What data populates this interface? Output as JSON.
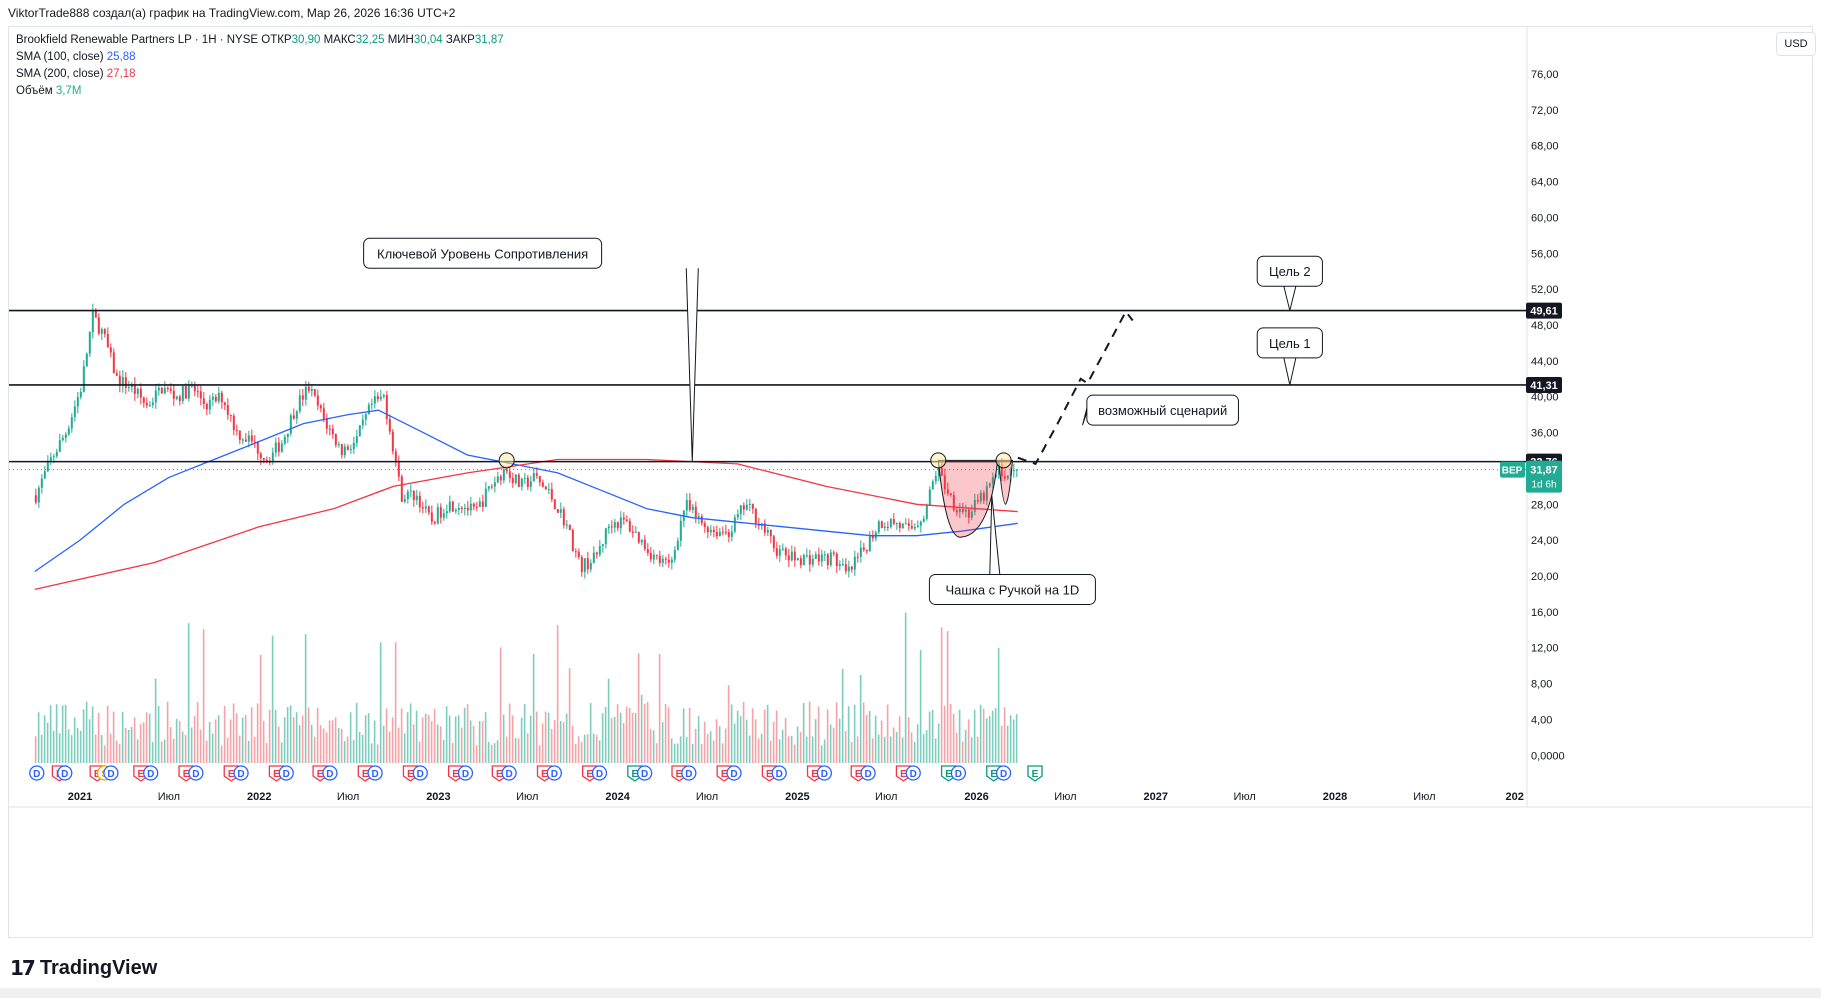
{
  "header": {
    "credit": "ViktorTrade888 создал(а) график на TradingView.com, Мар 26, 2026 16:36 UTC+2"
  },
  "legend": {
    "symbol": "Brookfield Renewable Partners LP · 1Н · NYSE",
    "open_label": "ОТКР",
    "open": "30,90",
    "high_label": "МАКС",
    "high": "32,25",
    "low_label": "МИН",
    "low": "30,04",
    "close_label": "ЗАКР",
    "close": "31,87",
    "sma100_label": "SMA (100, close)",
    "sma100": "25,88",
    "sma200_label": "SMA (200, close)",
    "sma200": "27,18",
    "volume_label": "Объём",
    "volume": "3,7M"
  },
  "currency": "USD",
  "branding": {
    "logo_text": "TradingView"
  },
  "colors": {
    "up": "#22ab94",
    "down": "#f23645",
    "sma100": "#2962ff",
    "sma200": "#f23645",
    "vol_up": "#7ccdbd",
    "vol_down": "#f4a3a8",
    "level": "#131722"
  },
  "chart_data": {
    "type": "candlestick",
    "ylim": [
      0,
      78
    ],
    "y_ticks": [
      "76,00",
      "72,00",
      "68,00",
      "64,00",
      "60,00",
      "56,00",
      "52,00",
      "48,00",
      "44,00",
      "40,00",
      "36,00",
      "32,00",
      "28,00",
      "24,00",
      "20,00",
      "16,00",
      "12,00",
      "8,00",
      "4,00",
      "0,0000"
    ],
    "x_tick_labels": [
      "2021",
      "Июл",
      "2022",
      "Июл",
      "2023",
      "Июл",
      "2024",
      "Июл",
      "2025",
      "Июл",
      "2026",
      "Июл",
      "2027",
      "Июл",
      "2028",
      "Июл",
      "202"
    ],
    "price_anchors": [
      {
        "date": "2020-10-01",
        "price": 29
      },
      {
        "date": "2020-11-01",
        "price": 33
      },
      {
        "date": "2020-12-01",
        "price": 36
      },
      {
        "date": "2021-01-01",
        "price": 41
      },
      {
        "date": "2021-01-25",
        "price": 49
      },
      {
        "date": "2021-02-15",
        "price": 47
      },
      {
        "date": "2021-03-15",
        "price": 42
      },
      {
        "date": "2021-04-15",
        "price": 41
      },
      {
        "date": "2021-05-15",
        "price": 39
      },
      {
        "date": "2021-06-15",
        "price": 41
      },
      {
        "date": "2021-07-15",
        "price": 40
      },
      {
        "date": "2021-08-15",
        "price": 41
      },
      {
        "date": "2021-09-15",
        "price": 39
      },
      {
        "date": "2021-10-15",
        "price": 40
      },
      {
        "date": "2021-11-15",
        "price": 36
      },
      {
        "date": "2021-12-15",
        "price": 35
      },
      {
        "date": "2022-01-15",
        "price": 33
      },
      {
        "date": "2022-02-15",
        "price": 35
      },
      {
        "date": "2022-03-15",
        "price": 39
      },
      {
        "date": "2022-04-10",
        "price": 41
      },
      {
        "date": "2022-05-15",
        "price": 37
      },
      {
        "date": "2022-06-15",
        "price": 34
      },
      {
        "date": "2022-07-15",
        "price": 35
      },
      {
        "date": "2022-08-15",
        "price": 39
      },
      {
        "date": "2022-09-10",
        "price": 40
      },
      {
        "date": "2022-09-30",
        "price": 34
      },
      {
        "date": "2022-10-15",
        "price": 29
      },
      {
        "date": "2022-11-15",
        "price": 29
      },
      {
        "date": "2022-12-15",
        "price": 26
      },
      {
        "date": "2023-01-15",
        "price": 28
      },
      {
        "date": "2023-02-15",
        "price": 28
      },
      {
        "date": "2023-03-15",
        "price": 27
      },
      {
        "date": "2023-04-15",
        "price": 30
      },
      {
        "date": "2023-05-15",
        "price": 32
      },
      {
        "date": "2023-06-15",
        "price": 30
      },
      {
        "date": "2023-07-15",
        "price": 31
      },
      {
        "date": "2023-08-15",
        "price": 29
      },
      {
        "date": "2023-09-15",
        "price": 26
      },
      {
        "date": "2023-10-15",
        "price": 21
      },
      {
        "date": "2023-11-15",
        "price": 22
      },
      {
        "date": "2023-12-15",
        "price": 26
      },
      {
        "date": "2024-01-15",
        "price": 26
      },
      {
        "date": "2024-02-15",
        "price": 24
      },
      {
        "date": "2024-03-15",
        "price": 22
      },
      {
        "date": "2024-04-15",
        "price": 21
      },
      {
        "date": "2024-05-15",
        "price": 28
      },
      {
        "date": "2024-06-15",
        "price": 26
      },
      {
        "date": "2024-07-15",
        "price": 25
      },
      {
        "date": "2024-08-15",
        "price": 25
      },
      {
        "date": "2024-09-15",
        "price": 28
      },
      {
        "date": "2024-10-15",
        "price": 26
      },
      {
        "date": "2024-11-15",
        "price": 23
      },
      {
        "date": "2024-12-15",
        "price": 22
      },
      {
        "date": "2025-01-15",
        "price": 22
      },
      {
        "date": "2025-02-15",
        "price": 22
      },
      {
        "date": "2025-03-15",
        "price": 22
      },
      {
        "date": "2025-04-10",
        "price": 20
      },
      {
        "date": "2025-05-15",
        "price": 23
      },
      {
        "date": "2025-06-15",
        "price": 26
      },
      {
        "date": "2025-07-15",
        "price": 26
      },
      {
        "date": "2025-08-15",
        "price": 25
      },
      {
        "date": "2025-09-15",
        "price": 27
      },
      {
        "date": "2025-10-10",
        "price": 32
      },
      {
        "date": "2025-11-15",
        "price": 28
      },
      {
        "date": "2025-12-15",
        "price": 27
      },
      {
        "date": "2026-01-15",
        "price": 29
      },
      {
        "date": "2026-02-15",
        "price": 32
      },
      {
        "date": "2026-03-05",
        "price": 31
      },
      {
        "date": "2026-03-26",
        "price": 31.87
      }
    ],
    "sma100": [
      {
        "date": "2020-10-01",
        "value": 20.5
      },
      {
        "date": "2021-01-01",
        "value": 24
      },
      {
        "date": "2021-04-01",
        "value": 28
      },
      {
        "date": "2021-07-01",
        "value": 31
      },
      {
        "date": "2021-10-01",
        "value": 33
      },
      {
        "date": "2022-01-01",
        "value": 35
      },
      {
        "date": "2022-04-01",
        "value": 37
      },
      {
        "date": "2022-07-01",
        "value": 38
      },
      {
        "date": "2022-09-01",
        "value": 38.5
      },
      {
        "date": "2022-12-01",
        "value": 36
      },
      {
        "date": "2023-03-01",
        "value": 33.5
      },
      {
        "date": "2023-06-01",
        "value": 32.5
      },
      {
        "date": "2023-09-01",
        "value": 31.5
      },
      {
        "date": "2023-12-01",
        "value": 29.5
      },
      {
        "date": "2024-03-01",
        "value": 27.5
      },
      {
        "date": "2024-06-01",
        "value": 26.5
      },
      {
        "date": "2024-09-01",
        "value": 26
      },
      {
        "date": "2024-12-01",
        "value": 25.5
      },
      {
        "date": "2025-03-01",
        "value": 25
      },
      {
        "date": "2025-06-01",
        "value": 24.5
      },
      {
        "date": "2025-09-01",
        "value": 24.5
      },
      {
        "date": "2025-12-01",
        "value": 25
      },
      {
        "date": "2026-03-26",
        "value": 25.88
      }
    ],
    "sma200": [
      {
        "date": "2020-10-01",
        "value": 18.5
      },
      {
        "date": "2021-06-01",
        "value": 21.5
      },
      {
        "date": "2022-01-01",
        "value": 25.5
      },
      {
        "date": "2022-06-01",
        "value": 27.5
      },
      {
        "date": "2022-10-01",
        "value": 30
      },
      {
        "date": "2023-03-01",
        "value": 31.5
      },
      {
        "date": "2023-09-01",
        "value": 33
      },
      {
        "date": "2024-03-01",
        "value": 33
      },
      {
        "date": "2024-09-01",
        "value": 32.5
      },
      {
        "date": "2025-03-01",
        "value": 30
      },
      {
        "date": "2025-09-01",
        "value": 28
      },
      {
        "date": "2026-03-26",
        "value": 27.18
      }
    ],
    "levels": [
      {
        "price": 49.61,
        "label": "49,61"
      },
      {
        "price": 41.31,
        "label": "41,31"
      },
      {
        "price": 32.76,
        "label": "32,76"
      }
    ],
    "last_price": {
      "ticker": "BEP",
      "price": 31.87,
      "label": "31,87",
      "countdown": "1d 6h"
    },
    "annotations": [
      {
        "text": "Ключевой Уровень Сопротивления",
        "date": "2023-04-01",
        "price": 56,
        "target_date": "2024-06-01",
        "target_price": 32.76
      },
      {
        "text": "Цель 2",
        "date": "2027-10-01",
        "price": 54,
        "target_date": "2027-10-01",
        "target_price": 49.61
      },
      {
        "text": "Цель 1",
        "date": "2027-10-01",
        "price": 46,
        "target_date": "2027-10-01",
        "target_price": 41.31
      },
      {
        "text": "возможный сценарий",
        "date": "2027-01-15",
        "price": 38.5,
        "target_date": "2026-08-15",
        "target_price": 37.5
      },
      {
        "text": "Чашка с Ручкой на 1D",
        "date": "2026-03-15",
        "price": 18.5,
        "target_date": "2026-02-01",
        "target_price": 29
      }
    ],
    "scenario_path": [
      {
        "date": "2026-03-26",
        "price": 33.2
      },
      {
        "date": "2026-05-01",
        "price": 32.5
      },
      {
        "date": "2026-06-15",
        "price": 37
      },
      {
        "date": "2026-08-01",
        "price": 42
      },
      {
        "date": "2026-08-15",
        "price": 41.5
      },
      {
        "date": "2026-11-01",
        "price": 49.5
      },
      {
        "date": "2026-11-15",
        "price": 48.5
      }
    ],
    "cup_circles": [
      {
        "date": "2023-05-20",
        "price": 32.9
      },
      {
        "date": "2025-10-15",
        "price": 32.9
      },
      {
        "date": "2026-02-25",
        "price": 32.9
      }
    ],
    "event_markers": [
      {
        "date": "2020-10-05",
        "letter": "D"
      },
      {
        "date": "2020-11-20",
        "letter": "E"
      },
      {
        "date": "2020-12-01",
        "letter": "D"
      },
      {
        "date": "2021-02-05",
        "letter": "E"
      },
      {
        "date": "2021-02-20",
        "letter": "S"
      },
      {
        "date": "2021-03-05",
        "letter": "D"
      },
      {
        "date": "2021-05-05",
        "letter": "E"
      },
      {
        "date": "2021-05-25",
        "letter": "D"
      },
      {
        "date": "2021-08-05",
        "letter": "E"
      },
      {
        "date": "2021-08-25",
        "letter": "D"
      },
      {
        "date": "2021-11-05",
        "letter": "E"
      },
      {
        "date": "2021-11-25",
        "letter": "D"
      },
      {
        "date": "2022-02-05",
        "letter": "E"
      },
      {
        "date": "2022-02-25",
        "letter": "D"
      },
      {
        "date": "2022-05-05",
        "letter": "E"
      },
      {
        "date": "2022-05-25",
        "letter": "D"
      },
      {
        "date": "2022-08-05",
        "letter": "E"
      },
      {
        "date": "2022-08-25",
        "letter": "D"
      },
      {
        "date": "2022-11-05",
        "letter": "E"
      },
      {
        "date": "2022-11-25",
        "letter": "D"
      },
      {
        "date": "2023-02-05",
        "letter": "E"
      },
      {
        "date": "2023-02-25",
        "letter": "D"
      },
      {
        "date": "2023-05-05",
        "letter": "E"
      },
      {
        "date": "2023-05-25",
        "letter": "D"
      },
      {
        "date": "2023-08-05",
        "letter": "E"
      },
      {
        "date": "2023-08-25",
        "letter": "D"
      },
      {
        "date": "2023-11-05",
        "letter": "E"
      },
      {
        "date": "2023-11-25",
        "letter": "D"
      },
      {
        "date": "2024-02-05",
        "letter": "E"
      },
      {
        "date": "2024-02-25",
        "letter": "D"
      },
      {
        "date": "2024-05-05",
        "letter": "E"
      },
      {
        "date": "2024-05-25",
        "letter": "D"
      },
      {
        "date": "2024-08-05",
        "letter": "E"
      },
      {
        "date": "2024-08-25",
        "letter": "D"
      },
      {
        "date": "2024-11-05",
        "letter": "E"
      },
      {
        "date": "2024-11-25",
        "letter": "D"
      },
      {
        "date": "2025-02-05",
        "letter": "E"
      },
      {
        "date": "2025-02-25",
        "letter": "D"
      },
      {
        "date": "2025-05-05",
        "letter": "E"
      },
      {
        "date": "2025-05-25",
        "letter": "D"
      },
      {
        "date": "2025-08-05",
        "letter": "E"
      },
      {
        "date": "2025-08-25",
        "letter": "D"
      },
      {
        "date": "2025-11-05",
        "letter": "E"
      },
      {
        "date": "2025-11-25",
        "letter": "D"
      },
      {
        "date": "2026-02-05",
        "letter": "E"
      },
      {
        "date": "2026-02-25",
        "letter": "D"
      },
      {
        "date": "2026-04-30",
        "letter": "E"
      }
    ]
  }
}
